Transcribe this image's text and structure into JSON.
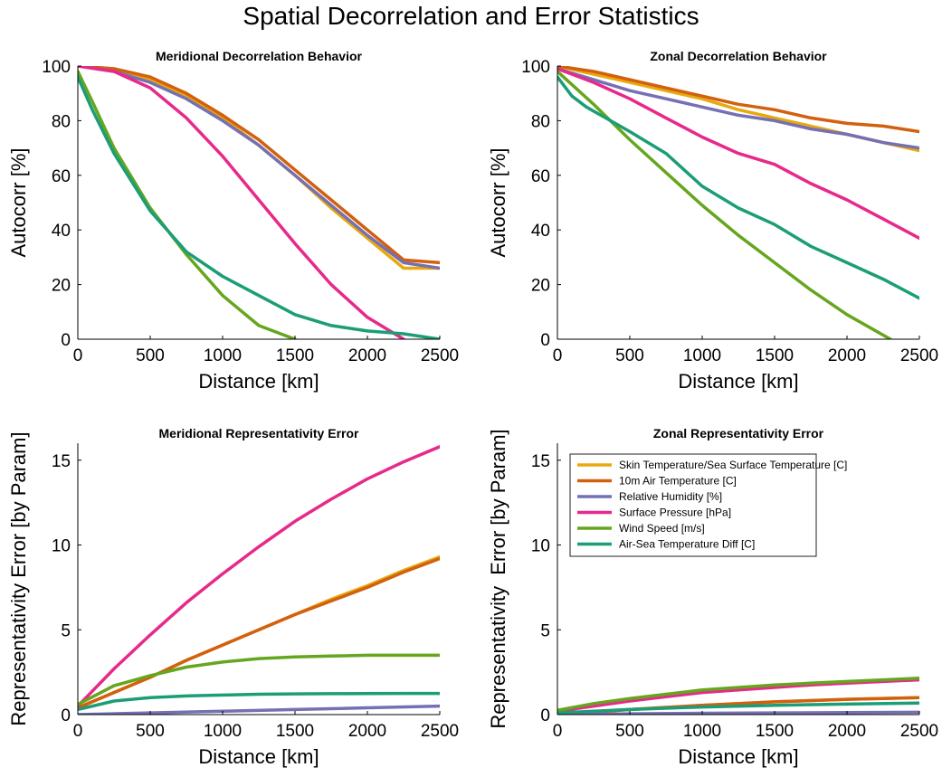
{
  "figure": {
    "suptitle": "Spatial Decorrelation and Error Statistics"
  },
  "legend_entries": [
    "Skin Temperature/Sea Surface Temperature [C]",
    "10m Air Temperature [C]",
    "Relative Humidity [%]",
    "Surface Pressure [hPa]",
    "Wind Speed [m/s]",
    "Air-Sea Temperature Diff [C]"
  ],
  "series_colors": [
    "#E8A90E",
    "#D2600F",
    "#7570B3",
    "#E7298A",
    "#66A61E",
    "#1B9E77"
  ],
  "chart_data": [
    {
      "type": "line",
      "title": "Meridional Decorrelation Behavior",
      "xlabel": "Distance [km]",
      "ylabel": "Autocorr [%]",
      "xlim": [
        0,
        2500
      ],
      "ylim": [
        0,
        100
      ],
      "xticks": [
        0,
        500,
        1000,
        1500,
        2000,
        2500
      ],
      "yticks": [
        0,
        20,
        40,
        60,
        80,
        100
      ],
      "grid": false,
      "series": [
        {
          "x": [
            0,
            250,
            500,
            750,
            1000,
            1250,
            1500,
            1750,
            2000,
            2250,
            2500
          ],
          "y": [
            100,
            99,
            95,
            89,
            81,
            71,
            60,
            48,
            37,
            26,
            26
          ]
        },
        {
          "x": [
            0,
            250,
            500,
            750,
            1000,
            1250,
            1500,
            1750,
            2000,
            2250,
            2500
          ],
          "y": [
            100,
            99,
            96,
            90,
            82,
            73,
            62,
            51,
            40,
            29,
            28
          ]
        },
        {
          "x": [
            0,
            250,
            500,
            750,
            1000,
            1250,
            1500,
            1750,
            2000,
            2250,
            2500
          ],
          "y": [
            100,
            98,
            94,
            88,
            80,
            71,
            60,
            49,
            38,
            28,
            26
          ]
        },
        {
          "x": [
            0,
            250,
            500,
            750,
            1000,
            1250,
            1500,
            1750,
            2000,
            2250
          ],
          "y": [
            100,
            98,
            92,
            81,
            67,
            51,
            35,
            20,
            8,
            0
          ]
        },
        {
          "x": [
            0,
            100,
            250,
            500,
            750,
            1000,
            1250,
            1500
          ],
          "y": [
            98,
            87,
            70,
            48,
            31,
            16,
            5,
            0
          ]
        },
        {
          "x": [
            0,
            100,
            250,
            500,
            750,
            1000,
            1250,
            1500,
            1750,
            2000,
            2250,
            2500
          ],
          "y": [
            96,
            84,
            68,
            47,
            32,
            23,
            16,
            9,
            5,
            3,
            2,
            0
          ]
        }
      ]
    },
    {
      "type": "line",
      "title": "Zonal Decorrelation Behavior",
      "xlabel": "Distance [km]",
      "ylabel": "Autocorr [%]",
      "xlim": [
        0,
        2500
      ],
      "ylim": [
        0,
        100
      ],
      "xticks": [
        0,
        500,
        1000,
        1500,
        2000,
        2500
      ],
      "yticks": [
        0,
        20,
        40,
        60,
        80,
        100
      ],
      "grid": false,
      "series": [
        {
          "x": [
            0,
            250,
            500,
            750,
            1000,
            1250,
            1500,
            1750,
            2000,
            2250,
            2500
          ],
          "y": [
            100,
            97,
            94,
            91,
            88,
            84,
            81,
            78,
            75,
            72,
            69
          ]
        },
        {
          "x": [
            0,
            250,
            500,
            750,
            1000,
            1250,
            1500,
            1750,
            2000,
            2250,
            2500
          ],
          "y": [
            100,
            98,
            95,
            92,
            89,
            86,
            84,
            81,
            79,
            78,
            76
          ]
        },
        {
          "x": [
            0,
            250,
            500,
            750,
            1000,
            1250,
            1500,
            1750,
            2000,
            2250,
            2500
          ],
          "y": [
            99,
            95,
            91,
            88,
            85,
            82,
            80,
            77,
            75,
            72,
            70
          ]
        },
        {
          "x": [
            0,
            250,
            500,
            750,
            1000,
            1250,
            1500,
            1750,
            2000,
            2250,
            2500
          ],
          "y": [
            99,
            94,
            88,
            81,
            74,
            68,
            64,
            57,
            51,
            44,
            37
          ]
        },
        {
          "x": [
            0,
            250,
            500,
            750,
            1000,
            1250,
            1500,
            1750,
            2000,
            2300
          ],
          "y": [
            98,
            86,
            73,
            61,
            49,
            38,
            28,
            18,
            9,
            0
          ]
        },
        {
          "x": [
            0,
            100,
            200,
            300,
            400,
            500,
            750,
            1000,
            1250,
            1500,
            1750,
            2000,
            2250,
            2500
          ],
          "y": [
            96,
            89,
            85,
            82,
            79,
            76,
            68,
            56,
            48,
            42,
            34,
            28,
            22,
            15
          ]
        }
      ]
    },
    {
      "type": "line",
      "title": "Meridional Representativity Error",
      "xlabel": "Distance [km]",
      "ylabel": "Representativity Error [by Param]",
      "xlim": [
        0,
        2500
      ],
      "ylim": [
        0,
        16
      ],
      "xticks": [
        0,
        500,
        1000,
        1500,
        2000,
        2500
      ],
      "yticks": [
        0,
        5,
        10,
        15
      ],
      "grid": false,
      "series": [
        {
          "x": [
            0,
            250,
            500,
            750,
            1000,
            1250,
            1500,
            1750,
            2000,
            2250,
            2500
          ],
          "y": [
            0.4,
            1.3,
            2.2,
            3.2,
            4.1,
            5.0,
            5.9,
            6.8,
            7.6,
            8.5,
            9.3
          ]
        },
        {
          "x": [
            0,
            250,
            500,
            750,
            1000,
            1250,
            1500,
            1750,
            2000,
            2250,
            2500
          ],
          "y": [
            0.4,
            1.3,
            2.2,
            3.2,
            4.1,
            5.0,
            5.9,
            6.7,
            7.5,
            8.4,
            9.2
          ]
        },
        {
          "x": [
            0,
            500,
            1000,
            1500,
            2000,
            2500
          ],
          "y": [
            0.0,
            0.1,
            0.2,
            0.3,
            0.4,
            0.5
          ]
        },
        {
          "x": [
            0,
            250,
            500,
            750,
            1000,
            1250,
            1500,
            1750,
            2000,
            2250,
            2500
          ],
          "y": [
            0.5,
            2.7,
            4.7,
            6.6,
            8.3,
            9.9,
            11.4,
            12.7,
            13.9,
            14.9,
            15.8
          ]
        },
        {
          "x": [
            0,
            250,
            500,
            750,
            1000,
            1250,
            1500,
            1750,
            2000,
            2250,
            2500
          ],
          "y": [
            0.6,
            1.7,
            2.3,
            2.8,
            3.1,
            3.3,
            3.4,
            3.45,
            3.5,
            3.5,
            3.5
          ]
        },
        {
          "x": [
            0,
            250,
            500,
            750,
            1000,
            1250,
            1500,
            1750,
            2000,
            2250,
            2500
          ],
          "y": [
            0.3,
            0.8,
            1.0,
            1.1,
            1.15,
            1.2,
            1.22,
            1.23,
            1.24,
            1.25,
            1.25
          ]
        }
      ]
    },
    {
      "type": "line",
      "title": "Zonal Representativity Error",
      "xlabel": "Distance [km]",
      "ylabel": "Representativity  Error [by Param]",
      "xlim": [
        0,
        2500
      ],
      "ylim": [
        0,
        16
      ],
      "xticks": [
        0,
        500,
        1000,
        1500,
        2000,
        2500
      ],
      "yticks": [
        0,
        5,
        10,
        15
      ],
      "grid": false,
      "legend": "top-left",
      "series": [
        {
          "x": [
            0,
            500,
            1000,
            1500,
            2000,
            2500
          ],
          "y": [
            0.0,
            0.3,
            0.55,
            0.75,
            0.9,
            1.0
          ]
        },
        {
          "x": [
            0,
            500,
            1000,
            1500,
            2000,
            2500
          ],
          "y": [
            0.0,
            0.3,
            0.55,
            0.75,
            0.9,
            1.0
          ]
        },
        {
          "x": [
            0,
            500,
            1000,
            1500,
            2000,
            2500
          ],
          "y": [
            0.0,
            0.05,
            0.08,
            0.1,
            0.12,
            0.14
          ]
        },
        {
          "x": [
            0,
            250,
            500,
            750,
            1000,
            1250,
            1500,
            1750,
            2000,
            2250,
            2500
          ],
          "y": [
            0.2,
            0.5,
            0.8,
            1.05,
            1.3,
            1.45,
            1.6,
            1.75,
            1.85,
            1.95,
            2.05
          ]
        },
        {
          "x": [
            0,
            250,
            500,
            750,
            1000,
            1250,
            1500,
            1750,
            2000,
            2250,
            2500
          ],
          "y": [
            0.25,
            0.65,
            0.95,
            1.2,
            1.45,
            1.6,
            1.75,
            1.85,
            1.95,
            2.05,
            2.15
          ]
        },
        {
          "x": [
            0,
            500,
            1000,
            1500,
            2000,
            2500
          ],
          "y": [
            0.1,
            0.3,
            0.45,
            0.55,
            0.62,
            0.68
          ]
        }
      ]
    }
  ]
}
